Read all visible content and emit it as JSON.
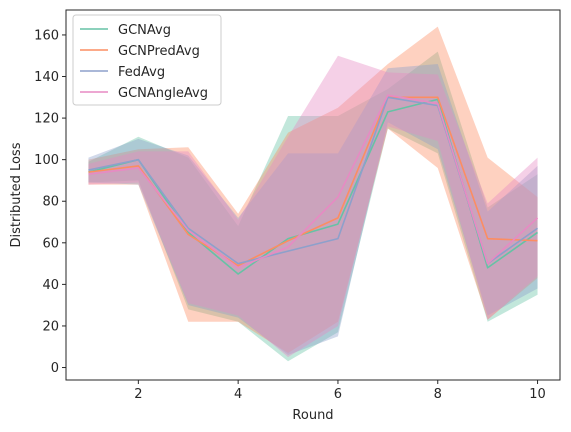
{
  "chart_data": {
    "type": "line",
    "title": "",
    "xlabel": "Round",
    "ylabel": "Distributed Loss",
    "xlim": [
      0.55,
      10.45
    ],
    "ylim": [
      -6,
      172
    ],
    "xticks": [
      2,
      4,
      6,
      8,
      10
    ],
    "yticks": [
      0,
      20,
      40,
      60,
      80,
      100,
      120,
      140,
      160
    ],
    "grid": false,
    "legend_position": "upper-left",
    "x": [
      1,
      2,
      3,
      4,
      5,
      6,
      7,
      8,
      9,
      10
    ],
    "series": [
      {
        "name": "GCNAvg",
        "color": "#66c2a5",
        "values": [
          94,
          100,
          65,
          45,
          62,
          69,
          123,
          129,
          48,
          65
        ],
        "lower": [
          89,
          90,
          28,
          22,
          3,
          17,
          115,
          103,
          22,
          35
        ],
        "upper": [
          99,
          111,
          101,
          68,
          121,
          121,
          134,
          152,
          77,
          93
        ]
      },
      {
        "name": "GCNPredAvg",
        "color": "#fc8d62",
        "values": [
          94,
          97,
          64,
          49,
          61,
          72,
          130,
          130,
          62,
          61
        ],
        "lower": [
          88,
          88,
          22,
          22,
          7,
          22,
          115,
          96,
          23,
          43
        ],
        "upper": [
          100,
          105,
          106,
          74,
          113,
          125,
          146,
          164,
          101,
          82
        ]
      },
      {
        "name": "FedAvg",
        "color": "#8da0cb",
        "values": [
          95,
          100,
          67,
          50,
          56,
          62,
          130,
          126,
          50,
          67
        ],
        "lower": [
          89,
          88,
          30,
          24,
          6,
          15,
          118,
          105,
          25,
          38
        ],
        "upper": [
          101,
          110,
          102,
          72,
          103,
          103,
          144,
          146,
          75,
          97
        ]
      },
      {
        "name": "GCNAngleAvg",
        "color": "#e78ac3",
        "values": [
          93,
          96,
          66,
          48,
          58,
          82,
          131,
          127,
          50,
          72
        ],
        "lower": [
          88,
          89,
          31,
          25,
          5,
          20,
          116,
          109,
          23,
          44
        ],
        "upper": [
          98,
          104,
          104,
          71,
          111,
          150,
          142,
          141,
          79,
          101
        ]
      }
    ]
  }
}
